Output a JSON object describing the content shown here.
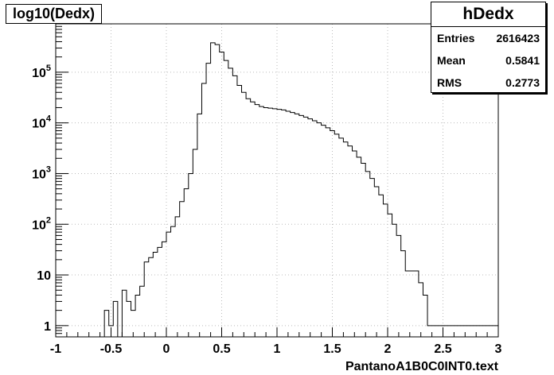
{
  "chart_data": {
    "type": "histogram",
    "title": "log10(Dedx)",
    "xlabel": "PantanoA1B0C0INT0.text",
    "xlim": [
      -1,
      3
    ],
    "ylim": [
      0.6,
      900000
    ],
    "y_scale": "log",
    "grid": true,
    "bin_width": 0.04,
    "x_ticks": [
      "-1",
      "-0.5",
      "0",
      "0.5",
      "1",
      "1.5",
      "2",
      "2.5",
      "3"
    ],
    "y_ticks": [
      "1",
      "10",
      "10^2",
      "10^3",
      "10^4",
      "10^5"
    ],
    "bins": [
      {
        "x": -0.56,
        "y": 2
      },
      {
        "x": -0.52,
        "y": 1
      },
      {
        "x": -0.48,
        "y": 3
      },
      {
        "x": -0.4,
        "y": 5
      },
      {
        "x": -0.36,
        "y": 3
      },
      {
        "x": -0.32,
        "y": 2
      },
      {
        "x": -0.28,
        "y": 4
      },
      {
        "x": -0.24,
        "y": 6
      },
      {
        "x": -0.2,
        "y": 18
      },
      {
        "x": -0.16,
        "y": 22
      },
      {
        "x": -0.12,
        "y": 28
      },
      {
        "x": -0.08,
        "y": 35
      },
      {
        "x": -0.04,
        "y": 45
      },
      {
        "x": 0.0,
        "y": 70
      },
      {
        "x": 0.04,
        "y": 90
      },
      {
        "x": 0.08,
        "y": 140
      },
      {
        "x": 0.12,
        "y": 280
      },
      {
        "x": 0.16,
        "y": 500
      },
      {
        "x": 0.2,
        "y": 1000
      },
      {
        "x": 0.24,
        "y": 3000
      },
      {
        "x": 0.28,
        "y": 15000
      },
      {
        "x": 0.32,
        "y": 60000
      },
      {
        "x": 0.36,
        "y": 150000
      },
      {
        "x": 0.4,
        "y": 380000
      },
      {
        "x": 0.44,
        "y": 350000
      },
      {
        "x": 0.48,
        "y": 250000
      },
      {
        "x": 0.52,
        "y": 170000
      },
      {
        "x": 0.56,
        "y": 120000
      },
      {
        "x": 0.6,
        "y": 85000
      },
      {
        "x": 0.64,
        "y": 55000
      },
      {
        "x": 0.68,
        "y": 40000
      },
      {
        "x": 0.72,
        "y": 30000
      },
      {
        "x": 0.76,
        "y": 26000
      },
      {
        "x": 0.8,
        "y": 23000
      },
      {
        "x": 0.84,
        "y": 21000
      },
      {
        "x": 0.88,
        "y": 20000
      },
      {
        "x": 0.92,
        "y": 19500
      },
      {
        "x": 0.96,
        "y": 19000
      },
      {
        "x": 1.0,
        "y": 18500
      },
      {
        "x": 1.04,
        "y": 18000
      },
      {
        "x": 1.08,
        "y": 17000
      },
      {
        "x": 1.12,
        "y": 16000
      },
      {
        "x": 1.16,
        "y": 15000
      },
      {
        "x": 1.2,
        "y": 14000
      },
      {
        "x": 1.24,
        "y": 13000
      },
      {
        "x": 1.28,
        "y": 12000
      },
      {
        "x": 1.32,
        "y": 11000
      },
      {
        "x": 1.36,
        "y": 10000
      },
      {
        "x": 1.4,
        "y": 9000
      },
      {
        "x": 1.44,
        "y": 8000
      },
      {
        "x": 1.48,
        "y": 7000
      },
      {
        "x": 1.52,
        "y": 6000
      },
      {
        "x": 1.56,
        "y": 5000
      },
      {
        "x": 1.6,
        "y": 4200
      },
      {
        "x": 1.64,
        "y": 3500
      },
      {
        "x": 1.68,
        "y": 2800
      },
      {
        "x": 1.72,
        "y": 2100
      },
      {
        "x": 1.76,
        "y": 1600
      },
      {
        "x": 1.8,
        "y": 1100
      },
      {
        "x": 1.84,
        "y": 800
      },
      {
        "x": 1.88,
        "y": 550
      },
      {
        "x": 1.92,
        "y": 380
      },
      {
        "x": 1.96,
        "y": 250
      },
      {
        "x": 2.0,
        "y": 160
      },
      {
        "x": 2.04,
        "y": 100
      },
      {
        "x": 2.08,
        "y": 60
      },
      {
        "x": 2.12,
        "y": 30
      },
      {
        "x": 2.16,
        "y": 12
      },
      {
        "x": 2.2,
        "y": 12
      },
      {
        "x": 2.24,
        "y": 12
      },
      {
        "x": 2.28,
        "y": 7
      },
      {
        "x": 2.32,
        "y": 4
      },
      {
        "x": 2.36,
        "y": 1
      },
      {
        "x": 2.4,
        "y": 1
      },
      {
        "x": 2.44,
        "y": 1
      },
      {
        "x": 2.48,
        "y": 1
      },
      {
        "x": 2.52,
        "y": 1
      },
      {
        "x": 2.56,
        "y": 1
      },
      {
        "x": 2.6,
        "y": 1
      },
      {
        "x": 2.64,
        "y": 1
      },
      {
        "x": 2.68,
        "y": 1
      },
      {
        "x": 2.72,
        "y": 1
      },
      {
        "x": 2.76,
        "y": 1
      },
      {
        "x": 2.8,
        "y": 1
      },
      {
        "x": 2.84,
        "y": 1
      },
      {
        "x": 2.88,
        "y": 1
      },
      {
        "x": 2.92,
        "y": 1
      },
      {
        "x": 2.96,
        "y": 1
      }
    ]
  },
  "stats": {
    "title": "hDedx",
    "rows": [
      {
        "label": "Entries",
        "value": "2616423"
      },
      {
        "label": "Mean",
        "value": "0.5841"
      },
      {
        "label": "RMS",
        "value": "0.2773"
      }
    ]
  }
}
